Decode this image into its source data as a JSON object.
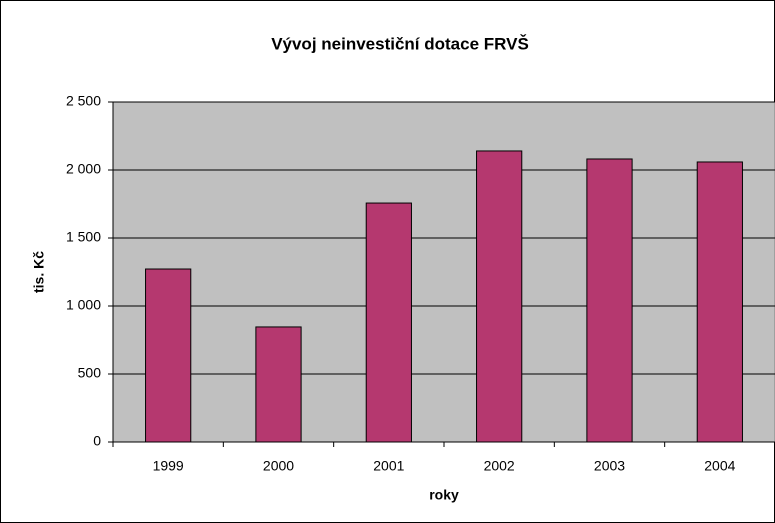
{
  "chart_data": {
    "type": "bar",
    "title": "Vývoj neinvestiční dotace FRVŠ",
    "x_label": "roky",
    "y_label": "tis. Kč",
    "categories": [
      "1999",
      "2000",
      "2001",
      "2002",
      "2003",
      "2004"
    ],
    "values": [
      1272,
      846,
      1757,
      2140,
      2081,
      2059
    ],
    "color": "#b5386f",
    "ylim": [
      0,
      2500
    ],
    "yticks": [
      0,
      500,
      {
        "value": 1000,
        "label": "1 000"
      },
      {
        "value": 1500,
        "label": "1 500"
      },
      {
        "value": 2000,
        "label": "2 000"
      },
      {
        "value": 2500,
        "label": "2 500"
      }
    ],
    "grid": true
  }
}
